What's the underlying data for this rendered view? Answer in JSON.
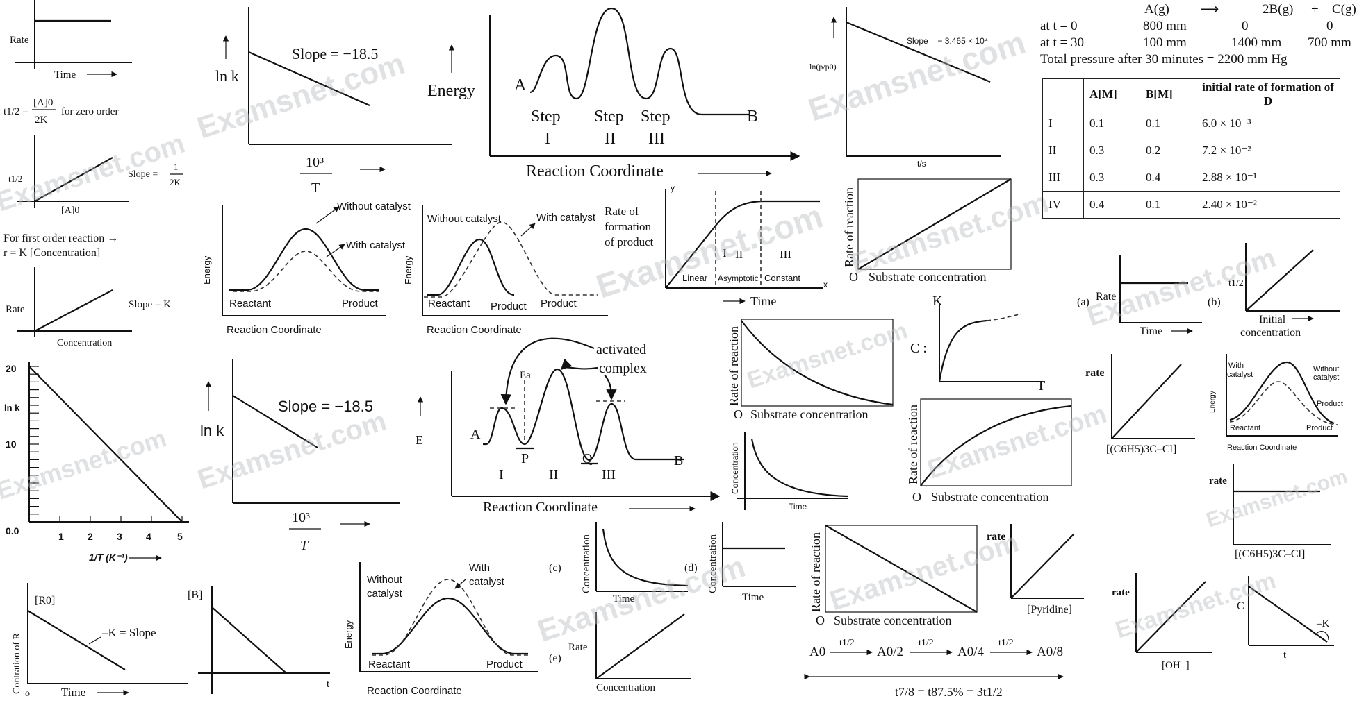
{
  "watermark": "Examsnet.com",
  "panel_zero_order": {
    "rate_label": "Rate",
    "time_label": "Time",
    "half_life_eq_lhs": "t1/2 =",
    "half_life_eq_num": "[A]0",
    "half_life_eq_den": "2K",
    "half_life_eq_note": "for  zero order",
    "t_half_label": "t1/2",
    "slope_label": "Slope =",
    "slope_num": "1",
    "slope_den": "2K",
    "a0_label": "[A]0",
    "first_order_line1": "For first order reaction →",
    "first_order_line2": "r = K [Concentration]",
    "rate_label2": "Rate",
    "slope_k": "Slope = K",
    "concentration_label": "Concentration"
  },
  "arrhenius_plot": {
    "y_label": "ln k",
    "ticks_y": [
      "20",
      "10",
      "0.0"
    ],
    "ticks_x": [
      "1",
      "2",
      "3",
      "4",
      "5"
    ],
    "x_label": "1/T (K⁻¹)"
  },
  "lnk_top": {
    "y_label": "ln k",
    "slope": "Slope = −18.5",
    "x_num": "10³",
    "x_den": "T"
  },
  "lnk_mid": {
    "y_label": "ln k",
    "slope": "Slope = −18.5",
    "x_num": "10³",
    "x_den": "T"
  },
  "energy_steps": {
    "y_label": "Energy",
    "start": "A",
    "end": "B",
    "steps": [
      "Step",
      "Step",
      "Step"
    ],
    "roman": [
      "I",
      "II",
      "III"
    ],
    "x_label": "Reaction Coordinate"
  },
  "ln_p_plot": {
    "y_label": "ln(p/p0)",
    "slope": "Slope = − 3.465 × 10⁴",
    "x_label": "t/s"
  },
  "reaction_table": {
    "equation": [
      "A(g)",
      "⟶",
      "2B(g)",
      "+",
      "C(g)"
    ],
    "row_t0": [
      "at t = 0",
      "800 mm",
      "0",
      "0"
    ],
    "row_t30": [
      "at t = 30",
      "100 mm",
      "1400 mm",
      "700 mm"
    ],
    "total": "Total pressure after 30 minutes = 2200 mm Hg"
  },
  "rate_table": {
    "headers": [
      "",
      "A[M]",
      "B[M]",
      "initial rate of formation of D"
    ],
    "rows": [
      [
        "I",
        "0.1",
        "0.1",
        "6.0 × 10⁻³"
      ],
      [
        "II",
        "0.3",
        "0.2",
        "7.2 × 10⁻²"
      ],
      [
        "III",
        "0.3",
        "0.4",
        "2.88 × 10⁻¹"
      ],
      [
        "IV",
        "0.4",
        "0.1",
        "2.40 × 10⁻²"
      ]
    ]
  },
  "catalyst_1": {
    "without": "Without catalyst",
    "with": "With catalyst",
    "y_label": "Energy",
    "reactant": "Reactant",
    "product": "Product",
    "x_label": "Reaction  Coordinate"
  },
  "catalyst_2": {
    "without": "Without catalyst",
    "with": "With catalyst",
    "y_label": "Energy",
    "reactant": "Reactant",
    "product1": "Product",
    "product2": "Product",
    "x_label": "Reaction  Coordinate"
  },
  "enzyme_phases": {
    "y_label": "Rate of formation of product",
    "axis_y": "y",
    "axis_x": "x",
    "phases": [
      "I",
      "II",
      "III"
    ],
    "phase_names": [
      "Linear",
      "Asymptotic",
      "Constant"
    ],
    "x_label": "Time"
  },
  "substrate_linear": {
    "y_label": "Rate of reaction",
    "origin": "O",
    "x_label": "Substrate concentration"
  },
  "small_ab": {
    "a": "(a)",
    "a_y": "Rate",
    "a_x": "Time",
    "b": "(b)",
    "b_y": "t1/2",
    "b_x1": "Initial",
    "b_x2": "concentration"
  },
  "activated_complex": {
    "label1": "activated",
    "label2": "complex",
    "ea": "Ea",
    "y_label": "E",
    "start": "A",
    "p": "P",
    "q": "Q",
    "end": "B",
    "roman": [
      "I",
      "II",
      "III"
    ],
    "x_label": "Reaction Coordinate"
  },
  "substrate_decay": {
    "y_label": "Rate of reaction",
    "origin": "O",
    "x_label": "Substrate concentration"
  },
  "k_vs_t": {
    "prefix": "C :",
    "y": "K",
    "x": "T"
  },
  "substrate_sat": {
    "y_label": "Rate of reaction",
    "origin": "O",
    "x_label": "Substrate concentration"
  },
  "conc_decay": {
    "y_label": "Concentration",
    "x_label": "Time"
  },
  "rate_ph3ccl": {
    "y": "rate",
    "x": "[(C6H5)3C–Cl]"
  },
  "catalyst_3": {
    "with": "With catalyst",
    "without": "Without catalyst",
    "y_label": "Energy",
    "reactant": "Reactant",
    "product1": "Product",
    "product2": "Product",
    "x_label": "Reaction  Coordinate"
  },
  "rate_const_ph3": {
    "y": "rate",
    "x": "[(C6H5)3C–Cl]"
  },
  "conc_R": {
    "y_label": "Contration of R",
    "r0": "[R0]",
    "slope": "–K = Slope",
    "origin": "o",
    "x_label": "Time"
  },
  "conc_B": {
    "y": "[B]",
    "x": "t"
  },
  "catalyst_4": {
    "without": "Without catalyst",
    "with": "With catalyst",
    "y_label": "Energy",
    "reactant": "Reactant",
    "product": "Product",
    "x_label": "Reaction  Coordinate"
  },
  "options_cde": {
    "c": "(c)",
    "d": "(d)",
    "e": "(e)",
    "c_y": "Concentration",
    "c_x": "Time",
    "d_y": "Concentration",
    "d_x": "Time",
    "e_y": "Rate",
    "e_x": "Concentration"
  },
  "substrate_neg": {
    "y_label": "Rate of reaction",
    "origin": "O",
    "x_label": "Substrate concentration"
  },
  "rate_pyridine": {
    "y": "rate",
    "x": "[Pyridine]"
  },
  "rate_oh": {
    "y": "rate",
    "x": "[OH⁻]"
  },
  "c_vs_t": {
    "y": "C",
    "x": "t",
    "slope": "–K"
  },
  "half_life_chain": {
    "items": [
      "A0",
      "A0/2",
      "A0/4",
      "A0/8"
    ],
    "arrow": "t1/2",
    "result": "t7/8 = t87.5% = 3t1/2"
  }
}
